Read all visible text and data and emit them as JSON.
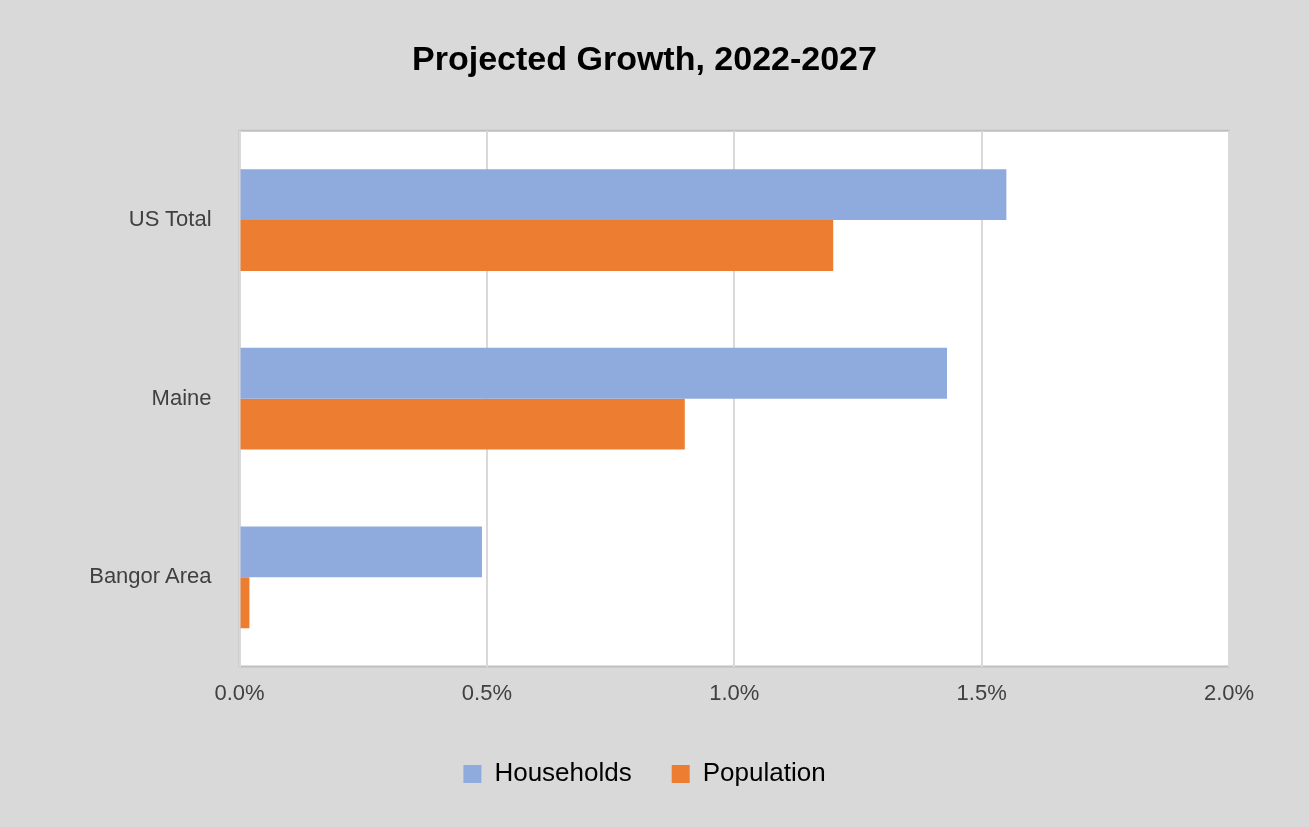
{
  "chart_data": {
    "type": "bar",
    "orientation": "horizontal",
    "title": "Projected Growth, 2022-2027",
    "categories": [
      "US Total",
      "Maine",
      "Bangor Area"
    ],
    "series": [
      {
        "name": "Households",
        "color": "#8faadc",
        "values": [
          1.55,
          1.43,
          0.49
        ]
      },
      {
        "name": "Population",
        "color": "#ed7d31",
        "values": [
          1.2,
          0.9,
          0.02
        ]
      }
    ],
    "xlim": [
      0,
      2
    ],
    "xticks": [
      {
        "value": 0,
        "label": "0.0%"
      },
      {
        "value": 0.5,
        "label": "0.5%"
      },
      {
        "value": 1,
        "label": "1.0%"
      },
      {
        "value": 1.5,
        "label": "1.5%"
      },
      {
        "value": 2,
        "label": "2.0%"
      }
    ],
    "grid": "x",
    "legend": "bottom"
  }
}
